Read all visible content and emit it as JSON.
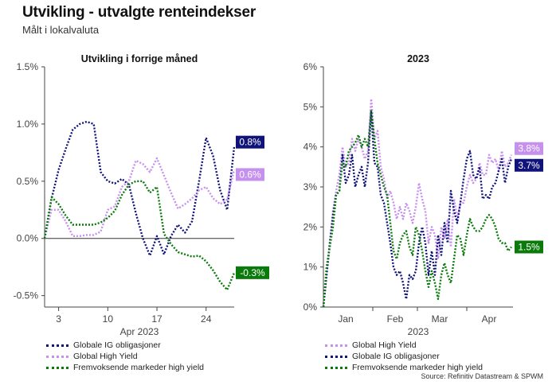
{
  "title": "Utvikling - utvalgte renteindekser",
  "subtitle": "Målt i lokalvaluta",
  "source": "Source: Refinitiv Datastream & SPWM",
  "colors": {
    "ig": "#10137a",
    "hy": "#c690ee",
    "em": "#0a7a0a",
    "axis": "#444444"
  },
  "chart_data": [
    {
      "type": "line",
      "title": "Utvikling i forrige måned",
      "xlabel": "Apr 2023",
      "x_tick_labels": [
        "3",
        "10",
        "17",
        "24"
      ],
      "x_tick_days": [
        3,
        10,
        17,
        24
      ],
      "x_range": [
        1,
        28
      ],
      "y_ticks": [
        "1.5%",
        "1.0%",
        "0.5%",
        "0.0%",
        "-0.5%"
      ],
      "y_tick_values": [
        1.5,
        1.0,
        0.5,
        0.0,
        -0.5
      ],
      "ylim": [
        -0.6,
        1.5
      ],
      "end_labels": [
        {
          "series": "ig",
          "text": "0.8%"
        },
        {
          "series": "hy",
          "text": "0.6%"
        },
        {
          "series": "em",
          "text": "-0.3%"
        }
      ],
      "legend": [
        {
          "series": "ig",
          "label": "Globale IG obligasjoner"
        },
        {
          "series": "hy",
          "label": "Global High Yield"
        },
        {
          "series": "em",
          "label": "Fremvoksende markeder high yield"
        }
      ],
      "series": [
        {
          "key": "ig",
          "name": "Globale IG obligasjoner",
          "x": [
            1,
            2,
            3,
            4,
            5,
            6,
            7,
            8,
            9,
            10,
            11,
            12,
            13,
            14,
            15,
            16,
            17,
            18,
            19,
            20,
            21,
            22,
            23,
            24,
            25,
            26,
            27,
            28
          ],
          "y": [
            0.0,
            0.35,
            0.6,
            0.78,
            0.95,
            1.0,
            1.02,
            1.0,
            0.58,
            0.5,
            0.48,
            0.52,
            0.47,
            0.22,
            0.0,
            -0.15,
            0.02,
            -0.14,
            0.02,
            0.12,
            0.05,
            0.15,
            0.5,
            0.88,
            0.72,
            0.42,
            0.25,
            0.8
          ]
        },
        {
          "key": "hy",
          "name": "Global High Yield",
          "x": [
            1,
            2,
            3,
            4,
            5,
            6,
            7,
            8,
            9,
            10,
            11,
            12,
            13,
            14,
            15,
            16,
            17,
            18,
            19,
            20,
            21,
            22,
            23,
            24,
            25,
            26,
            27,
            28
          ],
          "y": [
            0.0,
            0.25,
            0.25,
            0.15,
            0.02,
            0.02,
            0.03,
            0.03,
            0.06,
            0.25,
            0.28,
            0.45,
            0.5,
            0.68,
            0.65,
            0.58,
            0.7,
            0.55,
            0.4,
            0.26,
            0.3,
            0.35,
            0.42,
            0.45,
            0.35,
            0.3,
            0.34,
            0.6
          ]
        },
        {
          "key": "em",
          "name": "Fremvoksende markeder high yield",
          "x": [
            1,
            2,
            3,
            4,
            5,
            6,
            7,
            8,
            9,
            10,
            11,
            12,
            13,
            14,
            15,
            16,
            17,
            18,
            19,
            20,
            21,
            22,
            23,
            24,
            25,
            26,
            27,
            28
          ],
          "y": [
            0.0,
            0.36,
            0.3,
            0.2,
            0.12,
            0.12,
            0.12,
            0.12,
            0.14,
            0.18,
            0.24,
            0.38,
            0.47,
            0.5,
            0.5,
            0.4,
            0.45,
            0.04,
            -0.05,
            -0.12,
            -0.14,
            -0.16,
            -0.15,
            -0.2,
            -0.28,
            -0.38,
            -0.45,
            -0.3
          ]
        }
      ]
    },
    {
      "type": "line",
      "title": "2023",
      "xlabel": "2023",
      "x_tick_labels": [
        "Jan",
        "Feb",
        "Mar",
        "Apr"
      ],
      "x_tick_days": [
        15,
        46,
        74,
        105
      ],
      "x_month_boundaries": [
        32,
        60,
        91
      ],
      "x_range": [
        1,
        120
      ],
      "y_ticks": [
        "6%",
        "5%",
        "4%",
        "3%",
        "2%",
        "1%",
        "0%"
      ],
      "y_tick_values": [
        6,
        5,
        4,
        3,
        2,
        1,
        0
      ],
      "ylim": [
        0,
        6
      ],
      "end_labels": [
        {
          "series": "hy",
          "text": "3.8%"
        },
        {
          "series": "ig",
          "text": "3.7%"
        },
        {
          "series": "em",
          "text": "1.5%"
        }
      ],
      "legend": [
        {
          "series": "hy",
          "label": "Global High Yield"
        },
        {
          "series": "ig",
          "label": "Globale IG obligasjoner"
        },
        {
          "series": "em",
          "label": "Fremvoksende markeder high yield"
        }
      ],
      "series": [
        {
          "key": "hy",
          "name": "Global High Yield",
          "x": [
            1,
            3,
            5,
            7,
            9,
            11,
            13,
            15,
            17,
            19,
            21,
            23,
            25,
            27,
            29,
            31,
            33,
            35,
            37,
            39,
            41,
            43,
            45,
            47,
            49,
            51,
            53,
            55,
            57,
            59,
            61,
            63,
            65,
            67,
            69,
            71,
            73,
            75,
            77,
            79,
            81,
            83,
            85,
            87,
            89,
            91,
            93,
            95,
            97,
            99,
            101,
            103,
            105,
            107,
            109,
            111,
            113,
            115,
            117,
            119
          ],
          "y": [
            0,
            0.8,
            1.5,
            2.4,
            2.9,
            3.3,
            4.0,
            3.5,
            3.6,
            4.2,
            3.9,
            4.2,
            4.0,
            3.7,
            3.9,
            5.2,
            4.2,
            4.4,
            3.5,
            3.2,
            2.7,
            2.9,
            2.6,
            2.2,
            2.5,
            2.2,
            2.6,
            2.4,
            2.1,
            2.5,
            3.1,
            2.7,
            2.4,
            1.6,
            2.0,
            1.8,
            1.2,
            2.0,
            1.7,
            2.2,
            1.5,
            2.7,
            2.2,
            2.6,
            2.6,
            3.0,
            3.3,
            3.1,
            3.2,
            3.6,
            3.3,
            3.3,
            3.8,
            3.6,
            3.7,
            3.4,
            3.9,
            3.5,
            3.6,
            3.8
          ]
        },
        {
          "key": "ig",
          "name": "Globale IG obligasjoner",
          "x": [
            1,
            3,
            5,
            7,
            9,
            11,
            13,
            15,
            17,
            19,
            21,
            23,
            25,
            27,
            29,
            31,
            33,
            35,
            37,
            39,
            41,
            43,
            45,
            47,
            49,
            51,
            53,
            55,
            57,
            59,
            61,
            63,
            65,
            67,
            69,
            71,
            73,
            75,
            77,
            79,
            81,
            83,
            85,
            87,
            89,
            91,
            93,
            95,
            97,
            99,
            101,
            103,
            105,
            107,
            109,
            111,
            113,
            115,
            117,
            119
          ],
          "y": [
            0,
            0.8,
            1.6,
            2.3,
            2.8,
            2.9,
            3.8,
            3.1,
            3.3,
            3.8,
            3.0,
            3.3,
            3.5,
            3.0,
            3.6,
            4.9,
            3.6,
            3.5,
            2.8,
            2.6,
            2.1,
            1.6,
            1.0,
            0.8,
            0.9,
            0.6,
            0.2,
            0.8,
            0.7,
            0.9,
            1.6,
            2.0,
            1.6,
            0.8,
            1.4,
            0.8,
            1.8,
            1.3,
            2.1,
            1.6,
            2.9,
            2.4,
            2.1,
            2.6,
            3.2,
            3.7,
            3.9,
            3.3,
            3.2,
            3.5,
            2.7,
            2.8,
            2.7,
            3.0,
            3.1,
            3.4,
            3.7,
            3.1,
            3.5,
            3.7
          ]
        },
        {
          "key": "em",
          "name": "Fremvoksende markeder high yield",
          "x": [
            1,
            3,
            5,
            7,
            9,
            11,
            13,
            15,
            17,
            19,
            21,
            23,
            25,
            27,
            29,
            31,
            33,
            35,
            37,
            39,
            41,
            43,
            45,
            47,
            49,
            51,
            53,
            55,
            57,
            59,
            61,
            63,
            65,
            67,
            69,
            71,
            73,
            75,
            77,
            79,
            81,
            83,
            85,
            87,
            89,
            91,
            93,
            95,
            97,
            99,
            101,
            103,
            105,
            107,
            109,
            111,
            113,
            115,
            117,
            119
          ],
          "y": [
            0,
            1.0,
            1.5,
            2.0,
            2.8,
            2.9,
            3.6,
            3.5,
            3.9,
            4.0,
            4.1,
            4.3,
            4.0,
            4.2,
            4.0,
            4.9,
            4.2,
            3.6,
            3.3,
            3.0,
            2.8,
            2.1,
            1.4,
            1.2,
            1.6,
            1.8,
            1.9,
            1.5,
            1.3,
            2.0,
            1.8,
            1.4,
            0.9,
            0.5,
            0.9,
            0.6,
            0.2,
            0.8,
            1.1,
            0.8,
            0.6,
            1.2,
            1.8,
            1.7,
            1.3,
            1.8,
            2.2,
            2.0,
            1.9,
            1.9,
            2.0,
            2.2,
            2.3,
            2.2,
            2.0,
            1.7,
            1.6,
            1.6,
            1.4,
            1.5
          ]
        }
      ]
    }
  ]
}
